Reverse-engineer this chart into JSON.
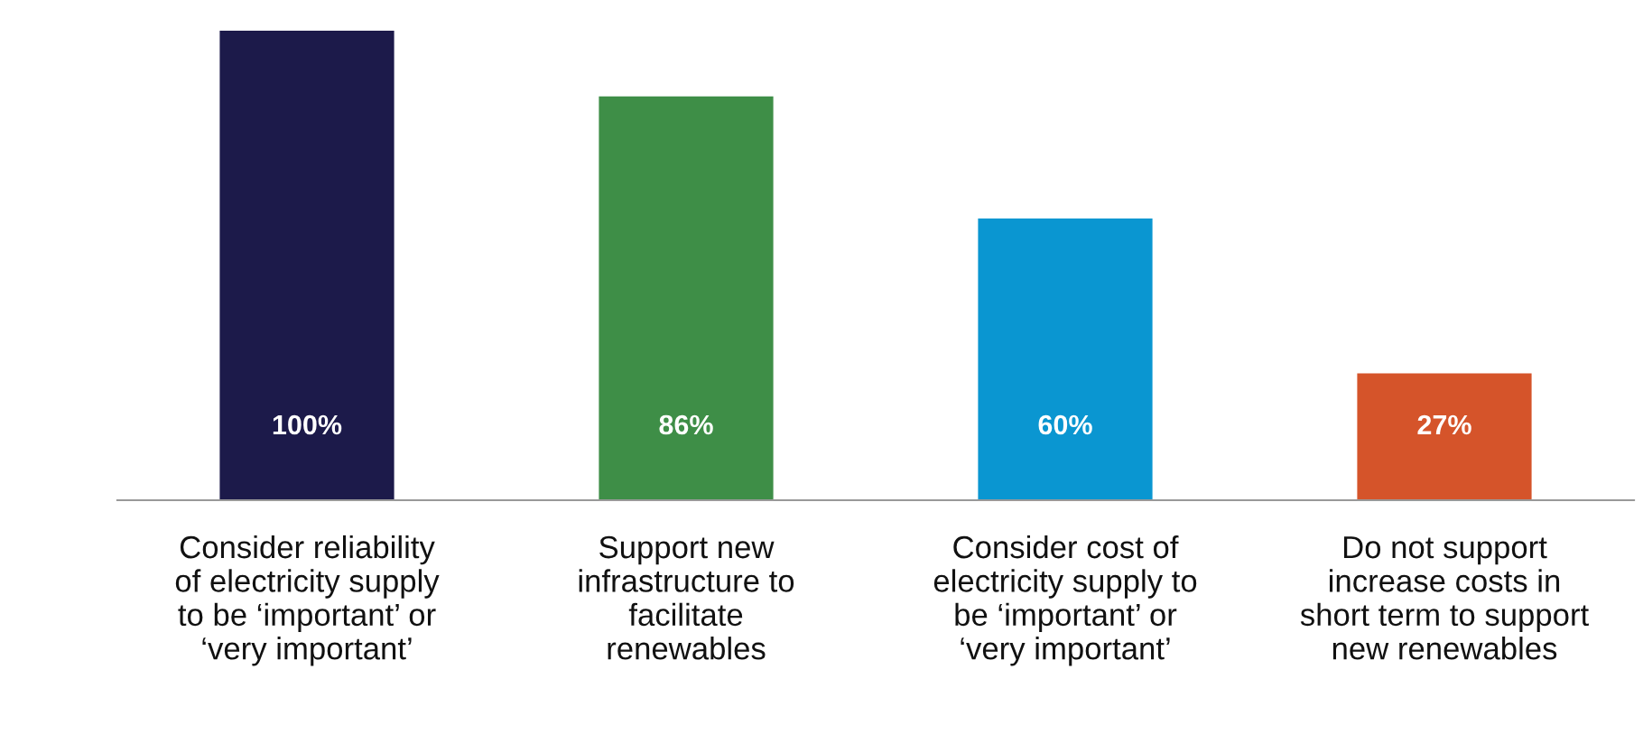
{
  "chart_data": {
    "type": "bar",
    "categories": [
      "Consider reliability\nof electricity supply\nto be ‘important’ or\n‘very important’",
      "Support new\ninfrastructure to\nfacilitate\nrenewables",
      "Consider cost of\nelectricity supply to\nbe ‘important’ or\n‘very important’",
      "Do not support\nincrease costs in\nshort term to support\nnew renewables"
    ],
    "values": [
      100,
      86,
      60,
      27
    ],
    "colors": [
      "#1c1a4a",
      "#3e8e47",
      "#0a96d1",
      "#d5542a"
    ],
    "value_labels": [
      "100%",
      "86%",
      "60%",
      "27%"
    ],
    "grid": false,
    "legend": false
  }
}
